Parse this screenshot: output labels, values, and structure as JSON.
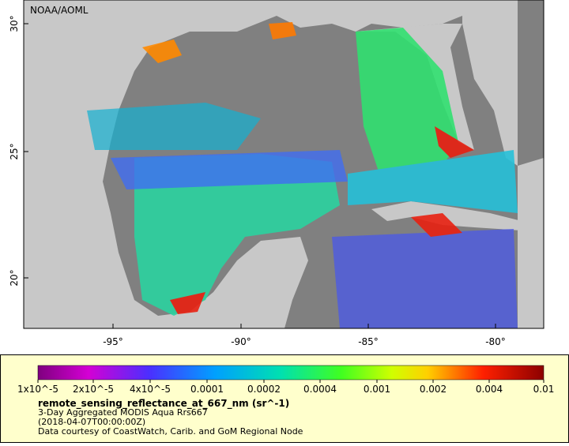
{
  "map": {
    "credit": "NOAA/AOML",
    "lat_labels": [
      "30°",
      "25°",
      "20°"
    ],
    "lon_labels": [
      "-95°",
      "-90°",
      "-85°",
      "-80°"
    ]
  },
  "legend": {
    "ticks": [
      "1x10^-5",
      "2x10^-5",
      "4x10^-5",
      "0.0001",
      "0.0002",
      "0.0004",
      "0.001",
      "0.002",
      "0.004",
      "0.01"
    ],
    "title": "remote_sensing_reflectance_at_667_nm (sr^-1)",
    "lines": [
      "3-Day Aggregated MODIS Aqua Rrs667",
      "(2018-04-07T00:00:00Z)",
      "Data courtesy of CoastWatch, Carib. and GoM Regional Node"
    ]
  }
}
